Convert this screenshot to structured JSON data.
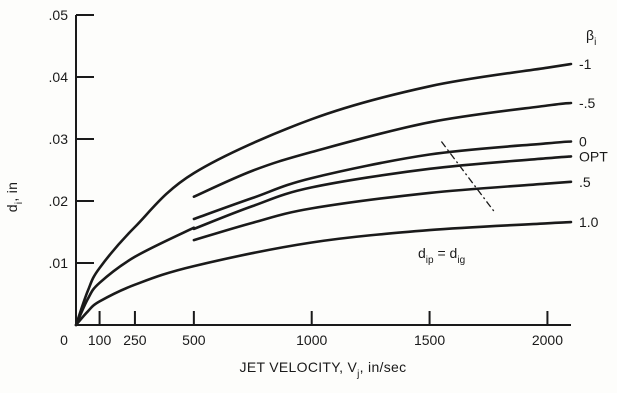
{
  "chart_data": {
    "type": "line",
    "title": "",
    "xlabel": "JET VELOCITY, V",
    "xlabel_sub": "j",
    "xlabel_units": ", in/sec",
    "ylabel": "d",
    "ylabel_sub": "i",
    "ylabel_units": ", in",
    "xlim": [
      0,
      2100
    ],
    "ylim": [
      0,
      0.05
    ],
    "x_ticks": [
      0,
      100,
      250,
      500,
      1000,
      1500,
      2000
    ],
    "x_tick_labels": [
      "0",
      "100",
      "250",
      "500",
      "1000",
      "1500",
      "2000"
    ],
    "y_ticks": [
      0.01,
      0.02,
      0.03,
      0.04,
      0.05
    ],
    "y_tick_labels": [
      ".01",
      ".02",
      ".03",
      ".04",
      ".05"
    ],
    "grid": false,
    "legend_title": "β",
    "legend_title_sub": "i",
    "series": [
      {
        "name": "-1",
        "x": [
          0,
          50,
          100,
          250,
          500,
          1000,
          1500,
          2000,
          2100
        ],
        "y": [
          0,
          0.0055,
          0.0092,
          0.0158,
          0.0245,
          0.0332,
          0.0385,
          0.0415,
          0.0421
        ]
      },
      {
        "name": "-.5",
        "x": [
          500,
          750,
          1000,
          1500,
          2000,
          2100
        ],
        "y": [
          0.0207,
          0.0249,
          0.0279,
          0.0327,
          0.0354,
          0.0358
        ]
      },
      {
        "name": "0",
        "x": [
          500,
          750,
          1000,
          1500,
          2000,
          2100
        ],
        "y": [
          0.0171,
          0.0205,
          0.0237,
          0.0275,
          0.0293,
          0.0296
        ]
      },
      {
        "name": "OPT",
        "x": [
          500,
          750,
          1000,
          1500,
          2000,
          2100
        ],
        "y": [
          0.0155,
          0.0192,
          0.0222,
          0.0252,
          0.0269,
          0.0272
        ]
      },
      {
        "name": ".5",
        "x": [
          500,
          750,
          1000,
          1500,
          2000,
          2100
        ],
        "y": [
          0.0137,
          0.0165,
          0.0188,
          0.0213,
          0.0228,
          0.0231
        ]
      },
      {
        "name": "1.0",
        "x": [
          0,
          50,
          100,
          250,
          500,
          1000,
          1500,
          2000,
          2100
        ],
        "y": [
          0,
          0.0022,
          0.0038,
          0.0065,
          0.0095,
          0.0133,
          0.0153,
          0.0164,
          0.0166
        ]
      },
      {
        "name": "",
        "x": [
          0,
          50,
          100,
          250,
          500
        ],
        "y": [
          0,
          0.0042,
          0.0068,
          0.011,
          0.0157
        ]
      }
    ],
    "annotation": {
      "text_main": "d",
      "text_sub1": "ip",
      "text_eq": " = d",
      "text_sub2": "ig",
      "line_points": [
        [
          1550,
          0.0296
        ],
        [
          1750,
          0.0195
        ],
        [
          1780,
          0.018
        ]
      ]
    }
  }
}
